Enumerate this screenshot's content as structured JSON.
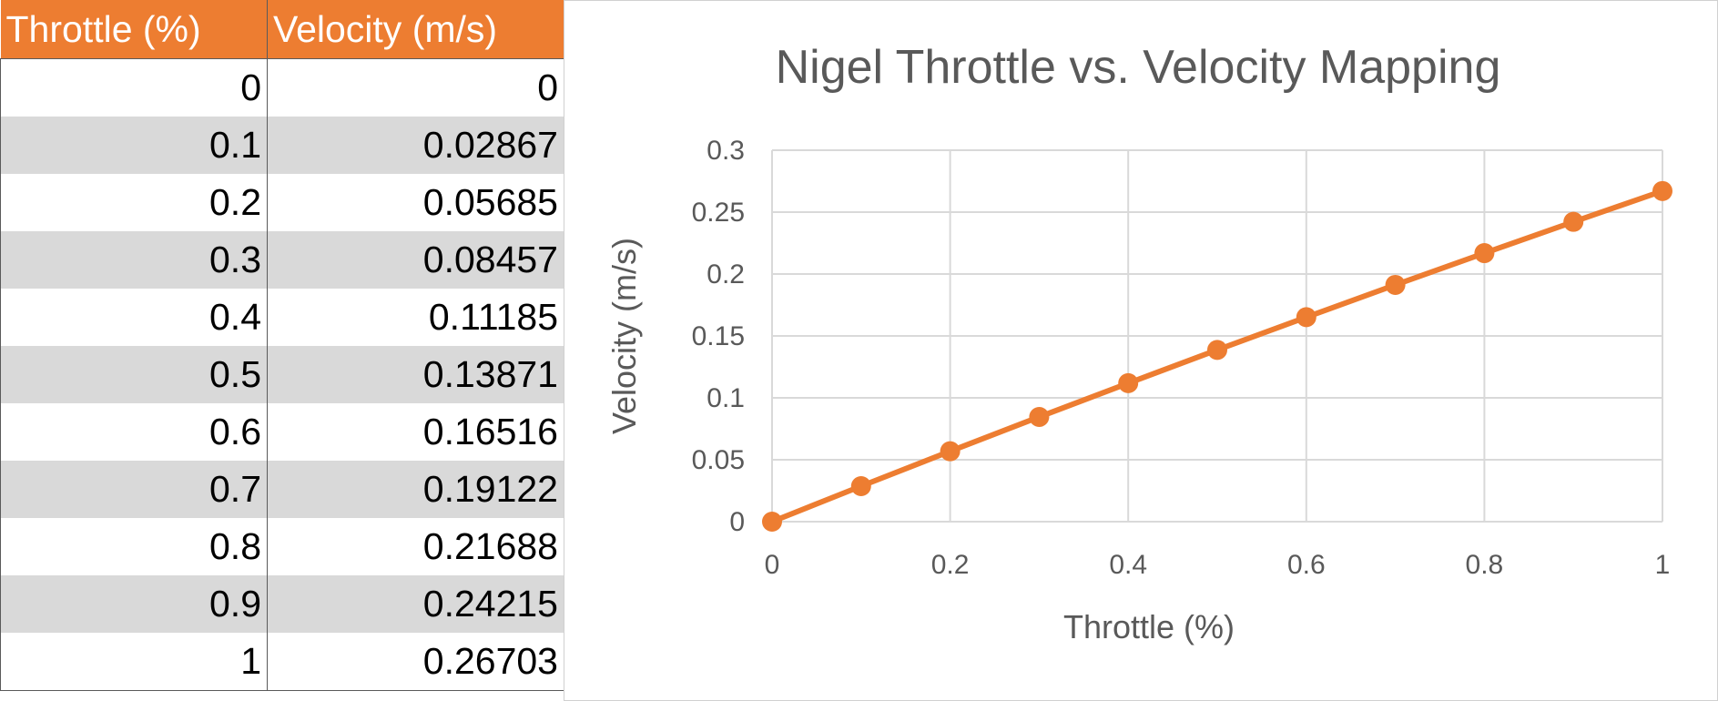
{
  "table": {
    "headers": [
      "Throttle (%)",
      "Velocity (m/s)"
    ],
    "rows": [
      [
        "0",
        "0"
      ],
      [
        "0.1",
        "0.02867"
      ],
      [
        "0.2",
        "0.05685"
      ],
      [
        "0.3",
        "0.08457"
      ],
      [
        "0.4",
        "0.11185"
      ],
      [
        "0.5",
        "0.13871"
      ],
      [
        "0.6",
        "0.16516"
      ],
      [
        "0.7",
        "0.19122"
      ],
      [
        "0.8",
        "0.21688"
      ],
      [
        "0.9",
        "0.24215"
      ],
      [
        "1",
        "0.26703"
      ]
    ],
    "header_color": "#ED7D31",
    "band_color": "#D9D9D9"
  },
  "chart_data": {
    "type": "line",
    "title": "Nigel Throttle vs. Velocity Mapping",
    "xlabel": "Throttle (%)",
    "ylabel": "Velocity (m/s)",
    "xlim": [
      0,
      1
    ],
    "ylim": [
      0,
      0.3
    ],
    "xticks": [
      0,
      0.2,
      0.4,
      0.6,
      0.8,
      1
    ],
    "xtick_labels": [
      "0",
      "0.2",
      "0.4",
      "0.6",
      "0.8",
      "1"
    ],
    "yticks": [
      0,
      0.05,
      0.1,
      0.15,
      0.2,
      0.25,
      0.3
    ],
    "ytick_labels": [
      "0",
      "0.05",
      "0.1",
      "0.15",
      "0.2",
      "0.25",
      "0.3"
    ],
    "grid": true,
    "legend": false,
    "series": [
      {
        "color": "#ED7D31",
        "x": [
          0,
          0.1,
          0.2,
          0.3,
          0.4,
          0.5,
          0.6,
          0.7,
          0.8,
          0.9,
          1
        ],
        "y": [
          0,
          0.02867,
          0.05685,
          0.08457,
          0.11185,
          0.13871,
          0.16516,
          0.19122,
          0.21688,
          0.24215,
          0.26703
        ]
      }
    ]
  }
}
